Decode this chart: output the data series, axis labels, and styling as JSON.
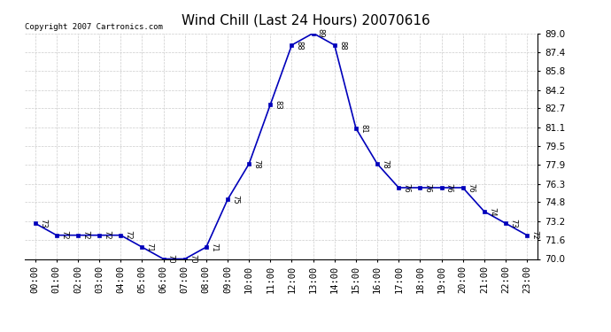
{
  "title": "Wind Chill (Last 24 Hours) 20070616",
  "copyright": "Copyright 2007 Cartronics.com",
  "hours": [
    "00:00",
    "01:00",
    "02:00",
    "03:00",
    "04:00",
    "05:00",
    "06:00",
    "07:00",
    "08:00",
    "09:00",
    "10:00",
    "11:00",
    "12:00",
    "13:00",
    "14:00",
    "15:00",
    "16:00",
    "17:00",
    "18:00",
    "19:00",
    "20:00",
    "21:00",
    "22:00",
    "23:00"
  ],
  "values": [
    73,
    72,
    72,
    72,
    72,
    71,
    70,
    70,
    71,
    75,
    78,
    83,
    88,
    89,
    88,
    81,
    78,
    76,
    76,
    76,
    76,
    74,
    73,
    72
  ],
  "ylim_min": 70.0,
  "ylim_max": 89.0,
  "yticks": [
    70.0,
    71.6,
    73.2,
    74.8,
    76.3,
    77.9,
    79.5,
    81.1,
    82.7,
    84.2,
    85.8,
    87.4,
    89.0
  ],
  "line_color": "#0000bb",
  "marker_color": "#0000bb",
  "bg_color": "#ffffff",
  "grid_color": "#cccccc",
  "title_fontsize": 11,
  "copyright_fontsize": 6.5,
  "label_fontsize": 6,
  "tick_fontsize": 7.5
}
